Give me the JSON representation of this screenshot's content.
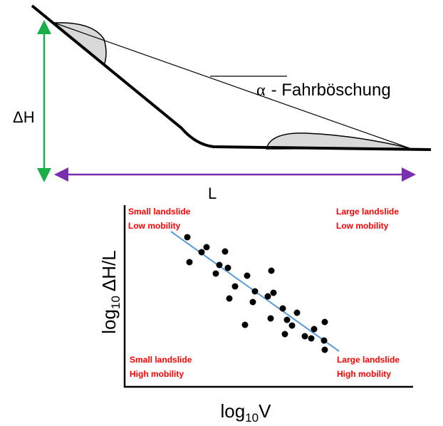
{
  "top_diagram": {
    "height_label": "ΔH",
    "length_label": "L",
    "angle_label": {
      "symbol": "α",
      "text": "- Fahrböschung"
    }
  },
  "plot": {
    "y_label": {
      "base": "log",
      "sub": "10",
      "rest": "ΔH/L"
    },
    "x_label": {
      "base": "log",
      "sub": "10",
      "rest": "V"
    },
    "quadrants": {
      "top_left": [
        "Small landslide",
        "Low mobility"
      ],
      "top_right": [
        "Large landslide",
        "Low mobility"
      ],
      "bottom_left": [
        "Small landslide",
        "High mobility"
      ],
      "bottom_right": [
        "Large landslide",
        "High mobility"
      ]
    }
  }
}
